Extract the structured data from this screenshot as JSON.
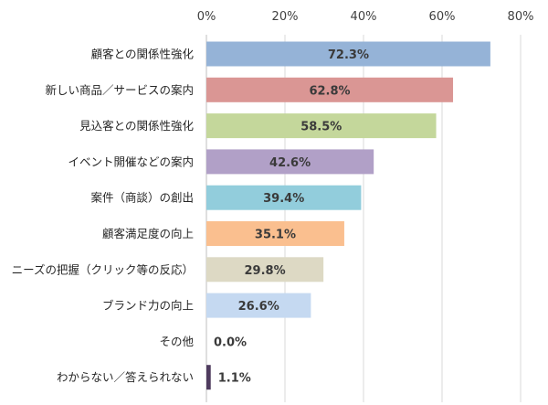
{
  "chart_data": {
    "type": "bar",
    "orientation": "horizontal",
    "title": "",
    "xlabel": "",
    "ylabel": "",
    "xlim": [
      0,
      80
    ],
    "x_ticks": [
      0,
      20,
      40,
      60,
      80
    ],
    "x_tick_labels": [
      "0%",
      "20%",
      "40%",
      "60%",
      "80%"
    ],
    "x_axis_position": "top",
    "grid": true,
    "legend": "none",
    "categories": [
      "顧客との関係性強化",
      "新しい商品／サービスの案内",
      "見込客との関係性強化",
      "イベント開催などの案内",
      "案件（商談）の創出",
      "顧客満足度の向上",
      "ニーズの把握（クリック等の反応）",
      "ブランド力の向上",
      "その他",
      "わからない／答えられない"
    ],
    "values": [
      72.3,
      62.8,
      58.5,
      42.6,
      39.4,
      35.1,
      29.8,
      26.6,
      0.0,
      1.1
    ],
    "data_labels": [
      "72.3%",
      "62.8%",
      "58.5%",
      "42.6%",
      "39.4%",
      "35.1%",
      "29.8%",
      "26.6%",
      "0.0%",
      "1.1%"
    ],
    "bar_colors": [
      "#95b3d7",
      "#da9694",
      "#c4d79b",
      "#b1a0c7",
      "#92cddc",
      "#fabf8f",
      "#ddd9c4",
      "#c5d9f1",
      "#8db4e2",
      "#4f3b5e"
    ]
  }
}
